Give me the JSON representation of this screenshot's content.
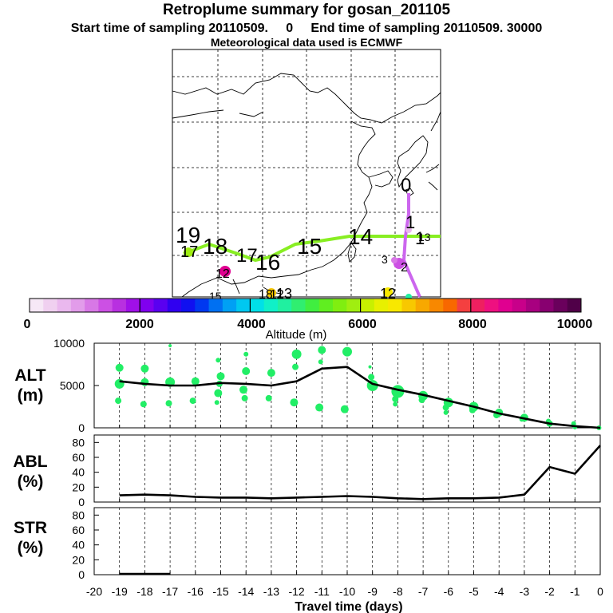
{
  "header": {
    "title": "Retroplume summary for gosan_201105",
    "start_label": "Start time of sampling 20110509.     0",
    "end_label": "End time of sampling 20110509. 30000",
    "met_label": "Meteorological data used is ECMWF"
  },
  "colors": {
    "plume_line": "#88ee22",
    "plume_tail": "#cc66ee",
    "cluster_green": "#22ee66",
    "mean_line": "#000000"
  },
  "map": {
    "timestamp_labels": [
      "0",
      "1",
      "1",
      "2",
      "3",
      "12",
      "12",
      "13",
      "14",
      "15",
      "16",
      "17",
      "17",
      "18",
      "19",
      "12",
      "15",
      "13",
      "18"
    ]
  },
  "colorbar": {
    "label": "Altitude (m)",
    "ticks": [
      "0",
      "2000",
      "4000",
      "6000",
      "8000",
      "10000"
    ],
    "colors": [
      "#f6e8f6",
      "#f0d0f0",
      "#eab8ee",
      "#e29cea",
      "#d878e6",
      "#cc50e4",
      "#b830e0",
      "#a010e8",
      "#8000ee",
      "#5a00f0",
      "#3000f0",
      "#1010f0",
      "#0038f0",
      "#0070f2",
      "#00a0f4",
      "#00c8f0",
      "#00e0e8",
      "#10f0c8",
      "#20f0a0",
      "#30ee70",
      "#40ee40",
      "#60ee20",
      "#80ee10",
      "#a0ee10",
      "#c8f000",
      "#e8f000",
      "#f8e800",
      "#f8c800",
      "#f8a800",
      "#f88800",
      "#f86800",
      "#f44040",
      "#ee2060",
      "#ee1080",
      "#e00090",
      "#c8008a",
      "#a80080",
      "#880070",
      "#6a005c",
      "#500048"
    ]
  },
  "chart_data": [
    {
      "type": "line",
      "panel": "ALT",
      "ylabel": "ALT (m)",
      "ylim": [
        0,
        10000
      ],
      "yticks": [
        "10000",
        "5000",
        "0"
      ],
      "x": [
        0,
        -1,
        -2,
        -3,
        -4,
        -5,
        -6,
        -7,
        -8,
        -9,
        -10,
        -11,
        -12,
        -13,
        -14,
        -15,
        -16,
        -17,
        -18,
        -19
      ],
      "series": [
        {
          "name": "mean altitude",
          "values": [
            0,
            200,
            500,
            1100,
            1700,
            2500,
            3200,
            3900,
            4500,
            5200,
            7200,
            7000,
            5500,
            5000,
            5200,
            5300,
            5000,
            5000,
            5200,
            5500
          ]
        }
      ],
      "clusters": [
        {
          "t": -0.05,
          "alt": 0,
          "size": 3
        },
        {
          "t": -1,
          "alt": 100,
          "size": 3
        },
        {
          "t": -1.05,
          "alt": 500,
          "size": 3
        },
        {
          "t": -2,
          "alt": 500,
          "size": 4
        },
        {
          "t": -2.05,
          "alt": 800,
          "size": 3
        },
        {
          "t": -3,
          "alt": 1200,
          "size": 5
        },
        {
          "t": -3.1,
          "alt": 1000,
          "size": 3
        },
        {
          "t": -4,
          "alt": 1800,
          "size": 5
        },
        {
          "t": -4.1,
          "alt": 1500,
          "size": 4
        },
        {
          "t": -5,
          "alt": 2500,
          "size": 6
        },
        {
          "t": -5.05,
          "alt": 2100,
          "size": 4
        },
        {
          "t": -6,
          "alt": 3000,
          "size": 6
        },
        {
          "t": -6.1,
          "alt": 2400,
          "size": 4
        },
        {
          "t": -6.1,
          "alt": 1800,
          "size": 3
        },
        {
          "t": -7,
          "alt": 3800,
          "size": 6
        },
        {
          "t": -7.05,
          "alt": 3300,
          "size": 4
        },
        {
          "t": -8,
          "alt": 4300,
          "size": 8
        },
        {
          "t": -8.1,
          "alt": 3400,
          "size": 4
        },
        {
          "t": -8.1,
          "alt": 2800,
          "size": 3
        },
        {
          "t": -9,
          "alt": 5000,
          "size": 7
        },
        {
          "t": -9.05,
          "alt": 6000,
          "size": 4
        },
        {
          "t": -9.1,
          "alt": 7200,
          "size": 2
        },
        {
          "t": -10,
          "alt": 9000,
          "size": 6
        },
        {
          "t": -10.1,
          "alt": 2200,
          "size": 5
        },
        {
          "t": -11,
          "alt": 9200,
          "size": 5
        },
        {
          "t": -11.05,
          "alt": 7800,
          "size": 3
        },
        {
          "t": -11.1,
          "alt": 2400,
          "size": 5
        },
        {
          "t": -12,
          "alt": 8700,
          "size": 6
        },
        {
          "t": -12.05,
          "alt": 7200,
          "size": 4
        },
        {
          "t": -12.1,
          "alt": 3000,
          "size": 5
        },
        {
          "t": -13,
          "alt": 6500,
          "size": 5
        },
        {
          "t": -13.1,
          "alt": 3500,
          "size": 4
        },
        {
          "t": -14,
          "alt": 8700,
          "size": 3
        },
        {
          "t": -14,
          "alt": 6700,
          "size": 5
        },
        {
          "t": -14.05,
          "alt": 3500,
          "size": 4
        },
        {
          "t": -14.1,
          "alt": 4500,
          "size": 5
        },
        {
          "t": -15,
          "alt": 6100,
          "size": 5
        },
        {
          "t": -15.05,
          "alt": 5200,
          "size": 4
        },
        {
          "t": -15.1,
          "alt": 4100,
          "size": 5
        },
        {
          "t": -15.15,
          "alt": 3000,
          "size": 3
        },
        {
          "t": -15.1,
          "alt": 8000,
          "size": 3
        },
        {
          "t": -16,
          "alt": 5500,
          "size": 5
        },
        {
          "t": -16.1,
          "alt": 3200,
          "size": 4
        },
        {
          "t": -17,
          "alt": 5400,
          "size": 6
        },
        {
          "t": -17.05,
          "alt": 2900,
          "size": 4
        },
        {
          "t": -17,
          "alt": 9700,
          "size": 2
        },
        {
          "t": -18,
          "alt": 7000,
          "size": 5
        },
        {
          "t": -18,
          "alt": 5400,
          "size": 5
        },
        {
          "t": -18.05,
          "alt": 2800,
          "size": 4
        },
        {
          "t": -19,
          "alt": 7100,
          "size": 5
        },
        {
          "t": -19,
          "alt": 5200,
          "size": 6
        },
        {
          "t": -19.05,
          "alt": 3200,
          "size": 4
        }
      ]
    },
    {
      "type": "line",
      "panel": "ABL",
      "ylabel": "ABL (%)",
      "ylim": [
        0,
        90
      ],
      "yticks": [
        "80",
        "60",
        "40",
        "20",
        "0"
      ],
      "x": [
        0,
        -1,
        -2,
        -3,
        -4,
        -5,
        -6,
        -7,
        -8,
        -9,
        -10,
        -11,
        -12,
        -13,
        -14,
        -15,
        -16,
        -17,
        -18,
        -19
      ],
      "series": [
        {
          "name": "fraction in ABL",
          "values": [
            76,
            38,
            47,
            10,
            6,
            5,
            5,
            4,
            5,
            7,
            8,
            7,
            6,
            5,
            6,
            6,
            7,
            9,
            10,
            9
          ]
        }
      ]
    },
    {
      "type": "line",
      "panel": "STR",
      "ylabel": "STR (%)",
      "ylim": [
        0,
        90
      ],
      "yticks": [
        "80",
        "60",
        "40",
        "20",
        "0"
      ],
      "xlabel": "Travel time (days)",
      "xticks": [
        "-20",
        "-19",
        "-18",
        "-17",
        "-16",
        "-15",
        "-14",
        "-13",
        "-12",
        "-11",
        "-10",
        "-9",
        "-8",
        "-7",
        "-6",
        "-5",
        "-4",
        "-3",
        "-2",
        "-1",
        "0"
      ],
      "x": [
        -17,
        -18,
        -19
      ],
      "series": [
        {
          "name": "fraction in stratosphere",
          "values": [
            1,
            1,
            1
          ]
        }
      ]
    }
  ]
}
